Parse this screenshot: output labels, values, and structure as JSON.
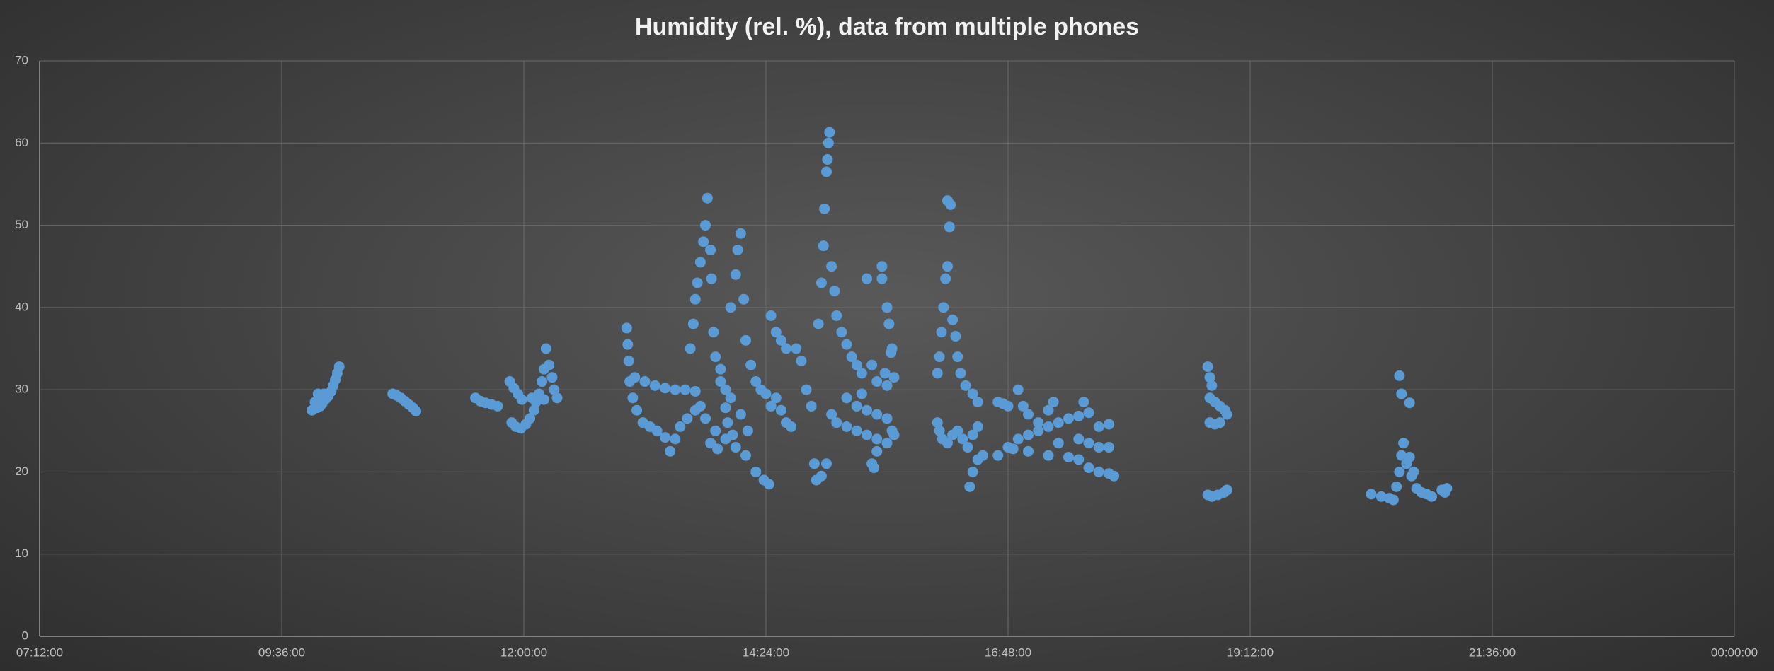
{
  "chart_data": {
    "type": "scatter",
    "title": "Humidity (rel. %), data from multiple phones",
    "xlim": [
      7.2,
      24
    ],
    "xticks": [
      {
        "value": 7.2,
        "label": "07:12:00"
      },
      {
        "value": 9.6,
        "label": "09:36:00"
      },
      {
        "value": 12,
        "label": "12:00:00"
      },
      {
        "value": 14.4,
        "label": "14:24:00"
      },
      {
        "value": 16.8,
        "label": "16:48:00"
      },
      {
        "value": 19.2,
        "label": "19:12:00"
      },
      {
        "value": 21.6,
        "label": "21:36:00"
      },
      {
        "value": 24,
        "label": "00:00:00"
      }
    ],
    "ylim": [
      0,
      70
    ],
    "yticks": [
      0,
      10,
      20,
      30,
      40,
      50,
      60,
      70
    ],
    "grid": true,
    "x": [
      9.9,
      9.93,
      9.96,
      9.98,
      10.0,
      10.03,
      10.06,
      10.09,
      10.11,
      10.13,
      10.15,
      10.17,
      9.95,
      10.02,
      10.7,
      10.74,
      10.78,
      10.82,
      10.86,
      10.9,
      10.93,
      11.52,
      11.57,
      11.62,
      11.68,
      11.74,
      11.86,
      11.9,
      11.94,
      11.98,
      11.88,
      11.92,
      11.97,
      12.02,
      12.06,
      12.1,
      12.12,
      12.15,
      12.18,
      12.2,
      12.22,
      12.25,
      12.28,
      12.3,
      12.33,
      12.2,
      12.08,
      13.02,
      13.03,
      13.04,
      13.05,
      13.1,
      13.2,
      13.3,
      13.4,
      13.5,
      13.6,
      13.7,
      13.08,
      13.12,
      13.18,
      13.25,
      13.32,
      13.4,
      13.45,
      13.5,
      13.55,
      13.62,
      13.7,
      13.65,
      13.68,
      13.7,
      13.72,
      13.75,
      13.78,
      13.8,
      13.82,
      13.85,
      13.86,
      13.88,
      13.9,
      13.95,
      14.0,
      14.05,
      13.75,
      13.8,
      13.9,
      14.0,
      14.1,
      14.2,
      14.3,
      14.38,
      14.43,
      13.95,
      14.02,
      14.07,
      14.05,
      14.1,
      14.12,
      14.15,
      14.18,
      14.2,
      14.25,
      14.3,
      14.35,
      14.4,
      14.15,
      14.22,
      13.85,
      13.92,
      14.0,
      14.45,
      14.5,
      14.55,
      14.6,
      14.65,
      14.7,
      14.75,
      14.8,
      14.85,
      14.45,
      14.5,
      14.55,
      14.6,
      14.88,
      14.9,
      14.95,
      15.0,
      14.92,
      14.95,
      14.97,
      14.98,
      15.0,
      15.01,
      15.02,
      15.03,
      15.05,
      15.08,
      15.1,
      15.15,
      15.2,
      15.25,
      15.3,
      15.35,
      15.05,
      15.1,
      15.2,
      15.3,
      15.4,
      15.5,
      15.6,
      15.45,
      15.47,
      15.5,
      15.2,
      15.3,
      15.4,
      15.5,
      15.6,
      15.55,
      15.55,
      15.6,
      15.62,
      15.65,
      15.4,
      15.45,
      15.5,
      15.6,
      15.67,
      15.65,
      15.67,
      15.58,
      15.64,
      15.35,
      16.1,
      16.12,
      16.15,
      16.2,
      16.25,
      16.3,
      16.35,
      16.4,
      16.45,
      16.5,
      16.1,
      16.12,
      16.14,
      16.16,
      16.18,
      16.2,
      16.22,
      16.2,
      16.23,
      16.25,
      16.28,
      16.3,
      16.33,
      16.38,
      16.45,
      16.5,
      16.42,
      16.45,
      16.5,
      16.55,
      16.7,
      16.75,
      16.8,
      16.7,
      16.8,
      16.9,
      17.0,
      17.1,
      17.2,
      17.3,
      17.4,
      17.5,
      17.6,
      17.7,
      17.8,
      16.9,
      16.95,
      17.0,
      17.1,
      17.2,
      17.25,
      16.85,
      17.0,
      17.2,
      17.4,
      17.5,
      17.6,
      17.7,
      17.8,
      17.85,
      17.55,
      17.5,
      17.6,
      17.7,
      17.8,
      17.3,
      18.78,
      18.8,
      18.82,
      18.8,
      18.85,
      18.9,
      18.95,
      18.97,
      18.8,
      18.85,
      18.9,
      18.78,
      18.82,
      18.88,
      18.94,
      18.97,
      20.4,
      20.5,
      20.58,
      20.62,
      20.65,
      20.68,
      20.7,
      20.72,
      20.68,
      20.7,
      20.78,
      20.75,
      20.8,
      20.85,
      20.9,
      20.95,
      21.0,
      20.78,
      20.82,
      21.1,
      21.13,
      21.15
    ],
    "series": [
      {
        "color": "#5b9bd5",
        "values": [
          27.5,
          28.5,
          29.5,
          28,
          28.3,
          28.8,
          29.2,
          29.8,
          30.5,
          31.2,
          32,
          32.8,
          27.8,
          29.5,
          29.5,
          29.3,
          29,
          28.6,
          28.2,
          27.8,
          27.4,
          29,
          28.6,
          28.4,
          28.2,
          28,
          31,
          30.2,
          29.5,
          28.8,
          26,
          25.5,
          25.3,
          25.8,
          26.5,
          27.5,
          28.5,
          29.5,
          31,
          32.5,
          35,
          33,
          31.5,
          30,
          29,
          28.8,
          29,
          37.5,
          35.5,
          33.5,
          31,
          31.5,
          31,
          30.5,
          30.2,
          30,
          30,
          29.8,
          29,
          27.5,
          26,
          25.5,
          25,
          24.2,
          22.5,
          24,
          25.5,
          26.5,
          27.5,
          35,
          38,
          41,
          43,
          45.5,
          48,
          50,
          53.3,
          47,
          43.5,
          37,
          34,
          31,
          30,
          29,
          28,
          26.5,
          25,
          24,
          23,
          22,
          20,
          19,
          18.5,
          32.5,
          26,
          24.5,
          40,
          44,
          47,
          49,
          41,
          36,
          33,
          31,
          30,
          29.5,
          27,
          25,
          23.5,
          22.8,
          27.8,
          28,
          29,
          27.5,
          26,
          25.5,
          35,
          33.5,
          30,
          28,
          39,
          37,
          36,
          35,
          21,
          19,
          19.5,
          21,
          38,
          43,
          47.5,
          52,
          56.5,
          58,
          60,
          61.3,
          45,
          42,
          39,
          37,
          35.5,
          34,
          33,
          32,
          27,
          26,
          25.5,
          25,
          24.5,
          24,
          23.5,
          21,
          20.5,
          22.5,
          29,
          28,
          27.5,
          27,
          26.5,
          45,
          43.5,
          40,
          38,
          35,
          43.5,
          33,
          31,
          30.5,
          31.5,
          25,
          24.5,
          32,
          34.5,
          29.5,
          26,
          25,
          24,
          23.5,
          24.5,
          25,
          24,
          23,
          24.5,
          25.5,
          32,
          34,
          37,
          40,
          43.5,
          45,
          49.8,
          53,
          52.5,
          38.5,
          36.5,
          34,
          32,
          30.5,
          29.5,
          28.5,
          18.2,
          20,
          21.5,
          22,
          28.5,
          28.3,
          28,
          22,
          23,
          24,
          24.5,
          25,
          25.5,
          26,
          26.5,
          26.8,
          27.2,
          25.5,
          25.8,
          30,
          28,
          27,
          26,
          27.5,
          28.5,
          22.8,
          22.5,
          22,
          21.8,
          21.5,
          20.5,
          20,
          19.8,
          19.5,
          28.5,
          24,
          23.5,
          23,
          23,
          23.5,
          32.8,
          31.5,
          30.5,
          29,
          28.5,
          28,
          27.5,
          27,
          26,
          25.8,
          26,
          17.2,
          17,
          17.2,
          17.5,
          17.8,
          17.3,
          17,
          16.8,
          16.6,
          18.2,
          20,
          22,
          23.5,
          31.7,
          29.5,
          28.4,
          21,
          19.5,
          18,
          17.5,
          17.3,
          17,
          21.8,
          20,
          17.8,
          17.5,
          18
        ]
      }
    ]
  }
}
